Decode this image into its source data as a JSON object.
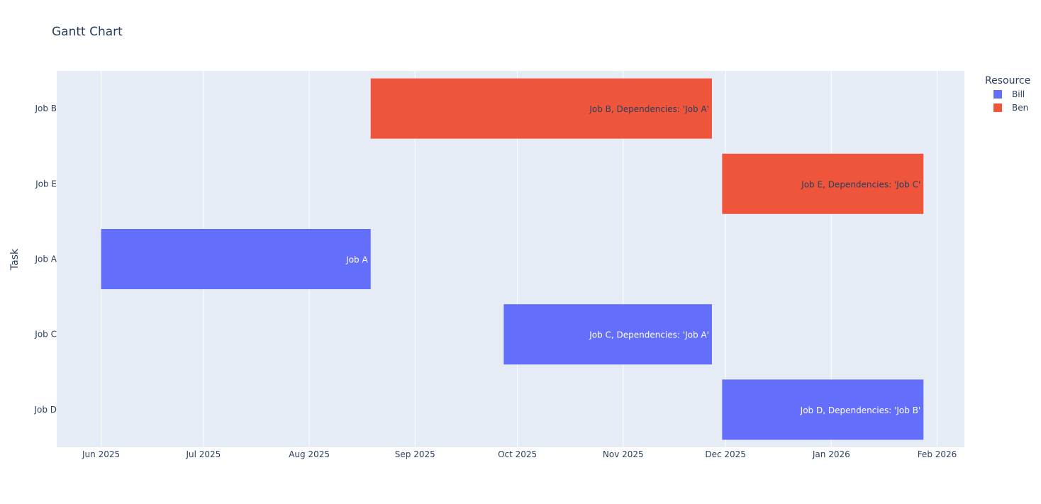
{
  "chart_data": {
    "type": "gantt",
    "title": "Gantt Chart",
    "xlabel": "",
    "ylabel": "Task",
    "x_axis_type": "date",
    "xlim": [
      "2025-05-19",
      "2026-02-09"
    ],
    "x_ticks": [
      {
        "date": "2025-06-01",
        "label": "Jun 2025"
      },
      {
        "date": "2025-07-01",
        "label": "Jul 2025"
      },
      {
        "date": "2025-08-01",
        "label": "Aug 2025"
      },
      {
        "date": "2025-09-01",
        "label": "Sep 2025"
      },
      {
        "date": "2025-10-01",
        "label": "Oct 2025"
      },
      {
        "date": "2025-11-01",
        "label": "Nov 2025"
      },
      {
        "date": "2025-12-01",
        "label": "Dec 2025"
      },
      {
        "date": "2026-01-01",
        "label": "Jan 2026"
      },
      {
        "date": "2026-02-01",
        "label": "Feb 2026"
      }
    ],
    "categories": [
      "Job B",
      "Job E",
      "Job A",
      "Job C",
      "Job D"
    ],
    "grid": true,
    "legend": {
      "title": "Resource",
      "placement": "top-right",
      "entries": [
        {
          "name": "Bill",
          "color": "#636efa",
          "text_color": "#ffffff"
        },
        {
          "name": "Ben",
          "color": "#ef553b",
          "text_color": "#2a3f5f"
        }
      ]
    },
    "tasks": [
      {
        "task": "Job B",
        "start": "2025-08-19",
        "finish": "2025-11-27",
        "resource": "Ben",
        "label": "Job B, Dependencies: 'Job A'"
      },
      {
        "task": "Job E",
        "start": "2025-11-30",
        "finish": "2026-01-28",
        "resource": "Ben",
        "label": "Job E, Dependencies: 'Job C'"
      },
      {
        "task": "Job A",
        "start": "2025-06-01",
        "finish": "2025-08-19",
        "resource": "Bill",
        "label": "Job A"
      },
      {
        "task": "Job C",
        "start": "2025-09-27",
        "finish": "2025-11-27",
        "resource": "Bill",
        "label": "Job C, Dependencies: 'Job A'"
      },
      {
        "task": "Job D",
        "start": "2025-11-30",
        "finish": "2026-01-28",
        "resource": "Bill",
        "label": "Job D, Dependencies: 'Job B'"
      }
    ]
  },
  "colors": {
    "plot_background": "#e5ecf6",
    "gridline": "#ffffff",
    "text": "#2a3f5f"
  }
}
